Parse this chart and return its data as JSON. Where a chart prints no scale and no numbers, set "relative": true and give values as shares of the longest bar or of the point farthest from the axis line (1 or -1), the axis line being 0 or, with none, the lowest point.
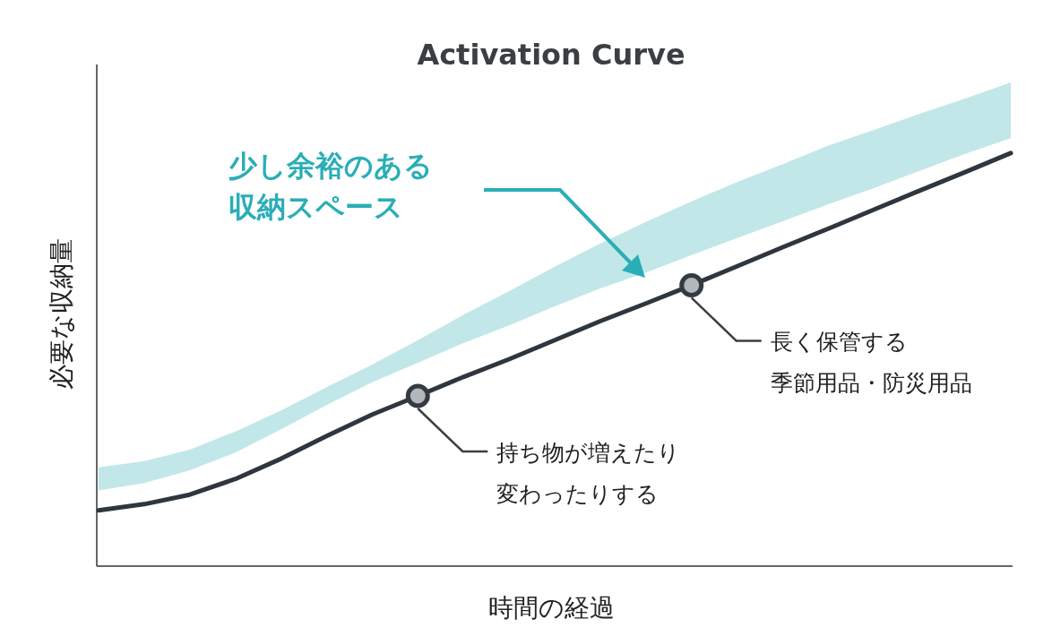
{
  "chart_data": {
    "type": "line",
    "title": "Activation Curve",
    "xlabel": "時間の経過",
    "ylabel": "必要な収納量",
    "relative": true,
    "categories": [
      null,
      null,
      null,
      null,
      null,
      null,
      null,
      null,
      null,
      null,
      null,
      null,
      null,
      null,
      null,
      null,
      null,
      null,
      null,
      null,
      null
    ],
    "series": [
      {
        "color": "#2f3640",
        "line_style": "solid",
        "values": [
          0.135,
          0.15,
          0.173,
          0.211,
          0.26,
          0.315,
          0.367,
          0.412,
          0.458,
          0.501,
          0.547,
          0.593,
          0.636,
          0.68,
          0.726,
          0.772,
          0.817,
          0.863,
          0.909,
          0.954,
          1
        ],
        "lower": [
          0.183,
          0.201,
          0.232,
          0.275,
          0.331,
          0.39,
          0.445,
          0.492,
          0.54,
          0.583,
          0.629,
          0.672,
          0.711,
          0.753,
          0.794,
          0.835,
          0.876,
          0.915,
          0.957,
          0.998,
          1.036
        ],
        "upper": [
          0.239,
          0.254,
          0.282,
          0.326,
          0.377,
          0.433,
          0.488,
          0.547,
          0.608,
          0.666,
          0.725,
          0.781,
          0.833,
          0.883,
          0.93,
          0.973,
          1.018,
          1.056,
          1.095,
          1.132,
          1.171
        ]
      }
    ],
    "annotations": [
      "少し余裕のある収納スペース",
      "持ち物が増えたり変わったりする",
      "長く保管する季節用品・防災用品"
    ]
  }
}
